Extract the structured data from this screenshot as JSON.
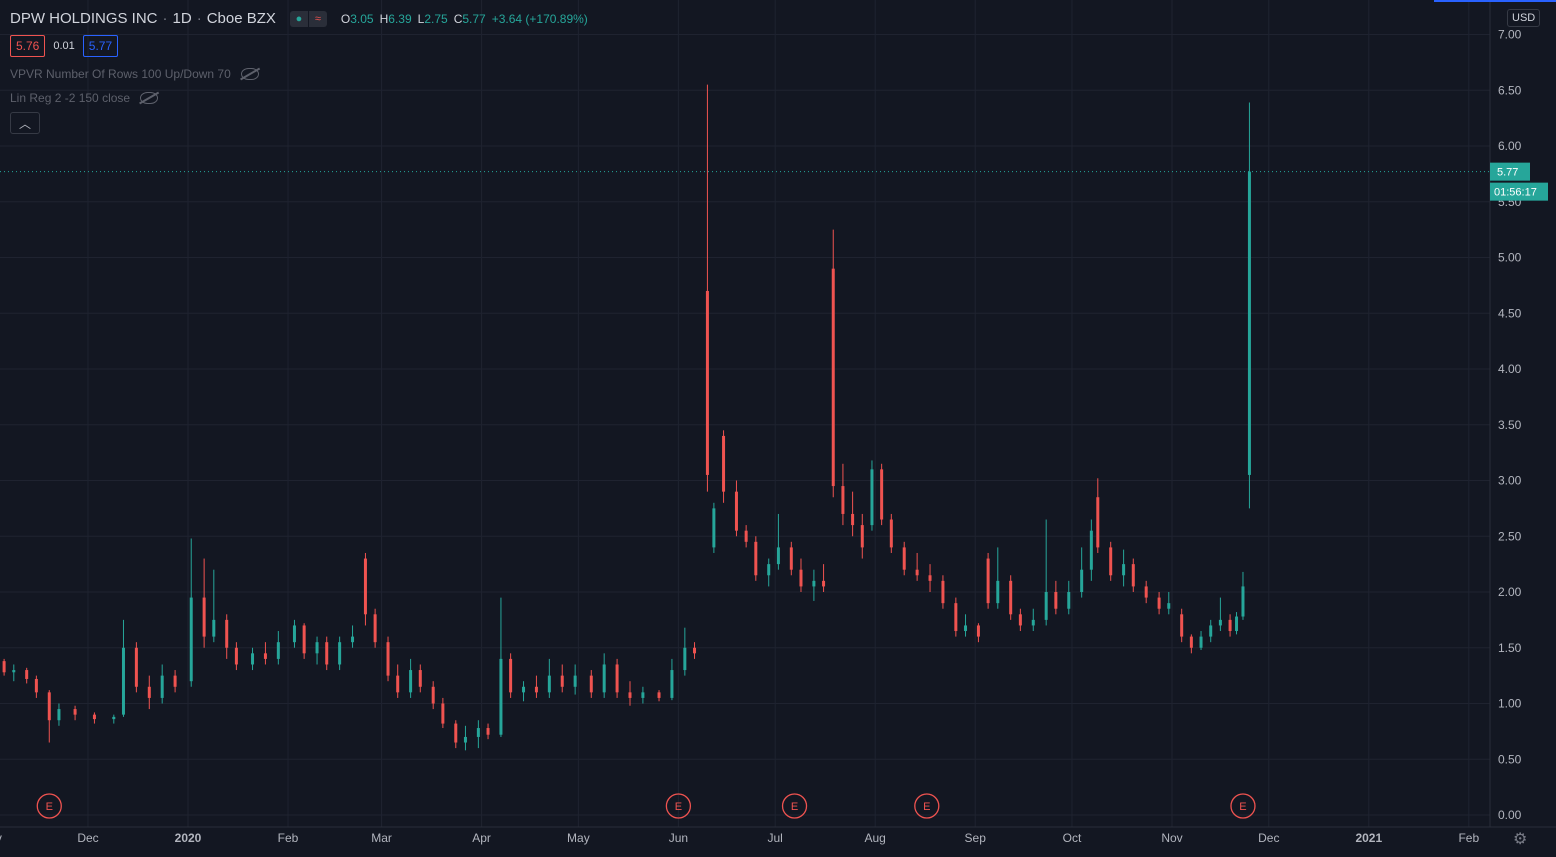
{
  "header": {
    "symbol": "DPW HOLDINGS INC",
    "interval": "1D",
    "exchange": "Cboe BZX",
    "open_label": "O",
    "open": "3.05",
    "high_label": "H",
    "high": "6.39",
    "low_label": "L",
    "low": "2.75",
    "close_label": "C",
    "close": "5.77",
    "change": "+3.64 (+170.89%)"
  },
  "trade": {
    "sell": "5.76",
    "spread": "0.01",
    "buy": "5.77"
  },
  "indicators": [
    "VPVR Number Of Rows 100 Up/Down 70",
    "Lin Reg 2 -2 150 close"
  ],
  "currency": "USD",
  "last_price_label": "5.77",
  "countdown": "01:56:17",
  "colors": {
    "bg": "#131722",
    "up": "#26a69a",
    "down": "#ef5350",
    "grid": "#1f2330",
    "text": "#b2b5be"
  },
  "chart_data": {
    "type": "candlestick",
    "ylim": [
      0,
      7
    ],
    "y_ticks": [
      "0.00",
      "0.50",
      "1.00",
      "1.50",
      "2.00",
      "2.50",
      "3.00",
      "3.50",
      "4.00",
      "4.50",
      "5.00",
      "5.50",
      "6.00",
      "6.50",
      "7.00"
    ],
    "x_ticks": [
      "Nov",
      "Dec",
      "2020",
      "Feb",
      "Mar",
      "Apr",
      "May",
      "Jun",
      "Jul",
      "Aug",
      "Sep",
      "Oct",
      "Nov",
      "Dec",
      "2021",
      "Feb"
    ],
    "last_price": 5.77,
    "earnings_marker": "E",
    "earnings_dates": [
      "2019-11-19",
      "2020-06-01",
      "2020-07-07",
      "2020-08-17",
      "2020-11-23"
    ],
    "candles": [
      {
        "t": "2019-11-01",
        "o": 1.3,
        "h": 1.4,
        "l": 1.2,
        "c": 1.38
      },
      {
        "t": "2019-11-05",
        "o": 1.38,
        "h": 1.4,
        "l": 1.25,
        "c": 1.28
      },
      {
        "t": "2019-11-08",
        "o": 1.28,
        "h": 1.35,
        "l": 1.2,
        "c": 1.3
      },
      {
        "t": "2019-11-12",
        "o": 1.3,
        "h": 1.32,
        "l": 1.18,
        "c": 1.22
      },
      {
        "t": "2019-11-15",
        "o": 1.22,
        "h": 1.25,
        "l": 1.05,
        "c": 1.1
      },
      {
        "t": "2019-11-19",
        "o": 1.1,
        "h": 1.12,
        "l": 0.65,
        "c": 0.85
      },
      {
        "t": "2019-11-22",
        "o": 0.85,
        "h": 1.0,
        "l": 0.8,
        "c": 0.95
      },
      {
        "t": "2019-11-27",
        "o": 0.95,
        "h": 0.98,
        "l": 0.85,
        "c": 0.9
      },
      {
        "t": "2019-12-03",
        "o": 0.9,
        "h": 0.92,
        "l": 0.82,
        "c": 0.86
      },
      {
        "t": "2019-12-09",
        "o": 0.86,
        "h": 0.9,
        "l": 0.82,
        "c": 0.88
      },
      {
        "t": "2019-12-12",
        "o": 0.9,
        "h": 1.75,
        "l": 0.88,
        "c": 1.5
      },
      {
        "t": "2019-12-16",
        "o": 1.5,
        "h": 1.55,
        "l": 1.1,
        "c": 1.15
      },
      {
        "t": "2019-12-20",
        "o": 1.15,
        "h": 1.25,
        "l": 0.95,
        "c": 1.05
      },
      {
        "t": "2019-12-24",
        "o": 1.05,
        "h": 1.35,
        "l": 1.0,
        "c": 1.25
      },
      {
        "t": "2019-12-28",
        "o": 1.25,
        "h": 1.3,
        "l": 1.1,
        "c": 1.15
      },
      {
        "t": "2020-01-02",
        "o": 1.2,
        "h": 2.48,
        "l": 1.15,
        "c": 1.95
      },
      {
        "t": "2020-01-06",
        "o": 1.95,
        "h": 2.3,
        "l": 1.5,
        "c": 1.6
      },
      {
        "t": "2020-01-09",
        "o": 1.6,
        "h": 2.2,
        "l": 1.55,
        "c": 1.75
      },
      {
        "t": "2020-01-13",
        "o": 1.75,
        "h": 1.8,
        "l": 1.4,
        "c": 1.5
      },
      {
        "t": "2020-01-16",
        "o": 1.5,
        "h": 1.55,
        "l": 1.3,
        "c": 1.35
      },
      {
        "t": "2020-01-21",
        "o": 1.35,
        "h": 1.5,
        "l": 1.3,
        "c": 1.45
      },
      {
        "t": "2020-01-25",
        "o": 1.45,
        "h": 1.55,
        "l": 1.35,
        "c": 1.4
      },
      {
        "t": "2020-01-29",
        "o": 1.4,
        "h": 1.65,
        "l": 1.35,
        "c": 1.55
      },
      {
        "t": "2020-02-03",
        "o": 1.55,
        "h": 1.75,
        "l": 1.5,
        "c": 1.7
      },
      {
        "t": "2020-02-06",
        "o": 1.7,
        "h": 1.72,
        "l": 1.4,
        "c": 1.45
      },
      {
        "t": "2020-02-10",
        "o": 1.45,
        "h": 1.6,
        "l": 1.35,
        "c": 1.55
      },
      {
        "t": "2020-02-13",
        "o": 1.55,
        "h": 1.6,
        "l": 1.3,
        "c": 1.35
      },
      {
        "t": "2020-02-17",
        "o": 1.35,
        "h": 1.6,
        "l": 1.3,
        "c": 1.55
      },
      {
        "t": "2020-02-21",
        "o": 1.55,
        "h": 1.7,
        "l": 1.5,
        "c": 1.6
      },
      {
        "t": "2020-02-25",
        "o": 2.3,
        "h": 2.35,
        "l": 1.7,
        "c": 1.8
      },
      {
        "t": "2020-02-28",
        "o": 1.8,
        "h": 1.85,
        "l": 1.5,
        "c": 1.55
      },
      {
        "t": "2020-03-03",
        "o": 1.55,
        "h": 1.6,
        "l": 1.2,
        "c": 1.25
      },
      {
        "t": "2020-03-06",
        "o": 1.25,
        "h": 1.35,
        "l": 1.05,
        "c": 1.1
      },
      {
        "t": "2020-03-10",
        "o": 1.1,
        "h": 1.4,
        "l": 1.05,
        "c": 1.3
      },
      {
        "t": "2020-03-13",
        "o": 1.3,
        "h": 1.35,
        "l": 1.1,
        "c": 1.15
      },
      {
        "t": "2020-03-17",
        "o": 1.15,
        "h": 1.2,
        "l": 0.95,
        "c": 1.0
      },
      {
        "t": "2020-03-20",
        "o": 1.0,
        "h": 1.05,
        "l": 0.78,
        "c": 0.82
      },
      {
        "t": "2020-03-24",
        "o": 0.82,
        "h": 0.85,
        "l": 0.6,
        "c": 0.65
      },
      {
        "t": "2020-03-27",
        "o": 0.65,
        "h": 0.8,
        "l": 0.58,
        "c": 0.7
      },
      {
        "t": "2020-03-31",
        "o": 0.7,
        "h": 0.85,
        "l": 0.6,
        "c": 0.78
      },
      {
        "t": "2020-04-03",
        "o": 0.78,
        "h": 0.82,
        "l": 0.68,
        "c": 0.72
      },
      {
        "t": "2020-04-07",
        "o": 0.72,
        "h": 1.95,
        "l": 0.7,
        "c": 1.4
      },
      {
        "t": "2020-04-10",
        "o": 1.4,
        "h": 1.45,
        "l": 1.05,
        "c": 1.1
      },
      {
        "t": "2020-04-14",
        "o": 1.1,
        "h": 1.2,
        "l": 1.02,
        "c": 1.15
      },
      {
        "t": "2020-04-18",
        "o": 1.15,
        "h": 1.25,
        "l": 1.05,
        "c": 1.1
      },
      {
        "t": "2020-04-22",
        "o": 1.1,
        "h": 1.4,
        "l": 1.05,
        "c": 1.25
      },
      {
        "t": "2020-04-26",
        "o": 1.25,
        "h": 1.35,
        "l": 1.1,
        "c": 1.15
      },
      {
        "t": "2020-04-30",
        "o": 1.15,
        "h": 1.35,
        "l": 1.08,
        "c": 1.25
      },
      {
        "t": "2020-05-05",
        "o": 1.25,
        "h": 1.3,
        "l": 1.05,
        "c": 1.1
      },
      {
        "t": "2020-05-09",
        "o": 1.1,
        "h": 1.45,
        "l": 1.05,
        "c": 1.35
      },
      {
        "t": "2020-05-13",
        "o": 1.35,
        "h": 1.4,
        "l": 1.05,
        "c": 1.1
      },
      {
        "t": "2020-05-17",
        "o": 1.1,
        "h": 1.2,
        "l": 0.98,
        "c": 1.05
      },
      {
        "t": "2020-05-21",
        "o": 1.05,
        "h": 1.15,
        "l": 1.0,
        "c": 1.1
      },
      {
        "t": "2020-05-26",
        "o": 1.1,
        "h": 1.12,
        "l": 1.02,
        "c": 1.05
      },
      {
        "t": "2020-05-30",
        "o": 1.05,
        "h": 1.4,
        "l": 1.03,
        "c": 1.3
      },
      {
        "t": "2020-06-03",
        "o": 1.3,
        "h": 1.68,
        "l": 1.25,
        "c": 1.5
      },
      {
        "t": "2020-06-06",
        "o": 1.5,
        "h": 1.55,
        "l": 1.4,
        "c": 1.45
      },
      {
        "t": "2020-06-10",
        "o": 4.7,
        "h": 6.55,
        "l": 2.9,
        "c": 3.05
      },
      {
        "t": "2020-06-12",
        "o": 2.4,
        "h": 2.8,
        "l": 2.35,
        "c": 2.75
      },
      {
        "t": "2020-06-15",
        "o": 3.4,
        "h": 3.45,
        "l": 2.8,
        "c": 2.9
      },
      {
        "t": "2020-06-19",
        "o": 2.9,
        "h": 3.0,
        "l": 2.5,
        "c": 2.55
      },
      {
        "t": "2020-06-22",
        "o": 2.55,
        "h": 2.6,
        "l": 2.4,
        "c": 2.45
      },
      {
        "t": "2020-06-25",
        "o": 2.45,
        "h": 2.5,
        "l": 2.1,
        "c": 2.15
      },
      {
        "t": "2020-06-29",
        "o": 2.15,
        "h": 2.3,
        "l": 2.05,
        "c": 2.25
      },
      {
        "t": "2020-07-02",
        "o": 2.25,
        "h": 2.7,
        "l": 2.2,
        "c": 2.4
      },
      {
        "t": "2020-07-06",
        "o": 2.4,
        "h": 2.45,
        "l": 2.15,
        "c": 2.2
      },
      {
        "t": "2020-07-09",
        "o": 2.2,
        "h": 2.3,
        "l": 2.0,
        "c": 2.05
      },
      {
        "t": "2020-07-13",
        "o": 2.05,
        "h": 2.2,
        "l": 1.92,
        "c": 2.1
      },
      {
        "t": "2020-07-16",
        "o": 2.1,
        "h": 2.25,
        "l": 2.0,
        "c": 2.05
      },
      {
        "t": "2020-07-19",
        "o": 4.9,
        "h": 5.25,
        "l": 2.85,
        "c": 2.95
      },
      {
        "t": "2020-07-22",
        "o": 2.95,
        "h": 3.15,
        "l": 2.6,
        "c": 2.7
      },
      {
        "t": "2020-07-25",
        "o": 2.7,
        "h": 2.9,
        "l": 2.5,
        "c": 2.6
      },
      {
        "t": "2020-07-28",
        "o": 2.6,
        "h": 2.7,
        "l": 2.3,
        "c": 2.4
      },
      {
        "t": "2020-07-31",
        "o": 2.6,
        "h": 3.18,
        "l": 2.55,
        "c": 3.1
      },
      {
        "t": "2020-08-03",
        "o": 3.1,
        "h": 3.15,
        "l": 2.6,
        "c": 2.65
      },
      {
        "t": "2020-08-06",
        "o": 2.65,
        "h": 2.7,
        "l": 2.35,
        "c": 2.4
      },
      {
        "t": "2020-08-10",
        "o": 2.4,
        "h": 2.45,
        "l": 2.15,
        "c": 2.2
      },
      {
        "t": "2020-08-14",
        "o": 2.2,
        "h": 2.35,
        "l": 2.1,
        "c": 2.15
      },
      {
        "t": "2020-08-18",
        "o": 2.15,
        "h": 2.25,
        "l": 2.0,
        "c": 2.1
      },
      {
        "t": "2020-08-22",
        "o": 2.1,
        "h": 2.15,
        "l": 1.85,
        "c": 1.9
      },
      {
        "t": "2020-08-26",
        "o": 1.9,
        "h": 1.95,
        "l": 1.6,
        "c": 1.65
      },
      {
        "t": "2020-08-29",
        "o": 1.65,
        "h": 1.8,
        "l": 1.6,
        "c": 1.7
      },
      {
        "t": "2020-09-02",
        "o": 1.7,
        "h": 1.72,
        "l": 1.55,
        "c": 1.6
      },
      {
        "t": "2020-09-05",
        "o": 2.3,
        "h": 2.35,
        "l": 1.85,
        "c": 1.9
      },
      {
        "t": "2020-09-08",
        "o": 1.9,
        "h": 2.4,
        "l": 1.85,
        "c": 2.1
      },
      {
        "t": "2020-09-12",
        "o": 2.1,
        "h": 2.15,
        "l": 1.75,
        "c": 1.8
      },
      {
        "t": "2020-09-15",
        "o": 1.8,
        "h": 1.85,
        "l": 1.65,
        "c": 1.7
      },
      {
        "t": "2020-09-19",
        "o": 1.7,
        "h": 1.85,
        "l": 1.65,
        "c": 1.75
      },
      {
        "t": "2020-09-23",
        "o": 1.75,
        "h": 2.65,
        "l": 1.7,
        "c": 2.0
      },
      {
        "t": "2020-09-26",
        "o": 2.0,
        "h": 2.1,
        "l": 1.8,
        "c": 1.85
      },
      {
        "t": "2020-09-30",
        "o": 1.85,
        "h": 2.1,
        "l": 1.8,
        "c": 2.0
      },
      {
        "t": "2020-10-04",
        "o": 2.0,
        "h": 2.4,
        "l": 1.95,
        "c": 2.2
      },
      {
        "t": "2020-10-07",
        "o": 2.2,
        "h": 2.65,
        "l": 2.1,
        "c": 2.55
      },
      {
        "t": "2020-10-09",
        "o": 2.85,
        "h": 3.02,
        "l": 2.35,
        "c": 2.4
      },
      {
        "t": "2020-10-13",
        "o": 2.4,
        "h": 2.45,
        "l": 2.1,
        "c": 2.15
      },
      {
        "t": "2020-10-17",
        "o": 2.15,
        "h": 2.38,
        "l": 2.05,
        "c": 2.25
      },
      {
        "t": "2020-10-20",
        "o": 2.25,
        "h": 2.3,
        "l": 2.0,
        "c": 2.05
      },
      {
        "t": "2020-10-24",
        "o": 2.05,
        "h": 2.1,
        "l": 1.9,
        "c": 1.95
      },
      {
        "t": "2020-10-28",
        "o": 1.95,
        "h": 2.0,
        "l": 1.8,
        "c": 1.85
      },
      {
        "t": "2020-10-31",
        "o": 1.85,
        "h": 2.0,
        "l": 1.8,
        "c": 1.9
      },
      {
        "t": "2020-11-04",
        "o": 1.8,
        "h": 1.85,
        "l": 1.55,
        "c": 1.6
      },
      {
        "t": "2020-11-07",
        "o": 1.6,
        "h": 1.62,
        "l": 1.45,
        "c": 1.5
      },
      {
        "t": "2020-11-10",
        "o": 1.5,
        "h": 1.65,
        "l": 1.48,
        "c": 1.6
      },
      {
        "t": "2020-11-13",
        "o": 1.6,
        "h": 1.75,
        "l": 1.55,
        "c": 1.7
      },
      {
        "t": "2020-11-16",
        "o": 1.7,
        "h": 1.95,
        "l": 1.65,
        "c": 1.75
      },
      {
        "t": "2020-11-19",
        "o": 1.75,
        "h": 1.8,
        "l": 1.6,
        "c": 1.65
      },
      {
        "t": "2020-11-21",
        "o": 1.65,
        "h": 1.82,
        "l": 1.62,
        "c": 1.78
      },
      {
        "t": "2020-11-23",
        "o": 1.78,
        "h": 2.18,
        "l": 1.75,
        "c": 2.05
      },
      {
        "t": "2020-11-25",
        "o": 3.05,
        "h": 6.39,
        "l": 2.75,
        "c": 5.77
      }
    ]
  }
}
